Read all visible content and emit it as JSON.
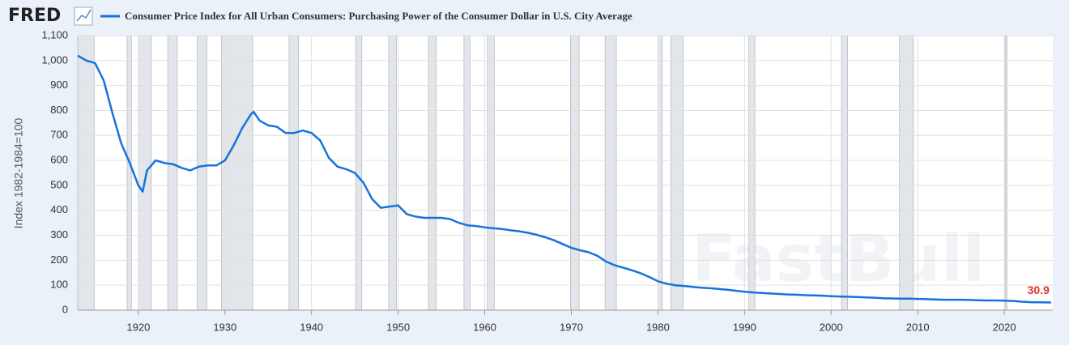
{
  "chart_data": {
    "type": "line",
    "source": "FRED",
    "y_label": "Index 1982-1984=100",
    "watermark": "FastBull",
    "grid": true,
    "recession_color": "#e2e5e9",
    "recessions": [
      [
        1913.0,
        1914.9
      ],
      [
        1918.7,
        1919.2
      ],
      [
        1920.0,
        1921.5
      ],
      [
        1923.4,
        1924.5
      ],
      [
        1926.8,
        1927.9
      ],
      [
        1929.6,
        1933.2
      ],
      [
        1937.4,
        1938.5
      ],
      [
        1945.1,
        1945.8
      ],
      [
        1948.9,
        1949.8
      ],
      [
        1953.5,
        1954.4
      ],
      [
        1957.6,
        1958.3
      ],
      [
        1960.3,
        1961.1
      ],
      [
        1969.9,
        1970.9
      ],
      [
        1973.9,
        1975.2
      ],
      [
        1980.0,
        1980.5
      ],
      [
        1981.5,
        1982.9
      ],
      [
        1990.5,
        1991.2
      ],
      [
        2001.2,
        2001.9
      ],
      [
        2007.9,
        2009.5
      ],
      [
        2020.1,
        2020.3
      ]
    ],
    "x": [
      1913,
      1914,
      1915,
      1916,
      1917,
      1918,
      1919,
      1920,
      1920.5,
      1921,
      1922,
      1923,
      1924,
      1925,
      1926,
      1927,
      1928,
      1929,
      1930,
      1931,
      1932,
      1933,
      1933.3,
      1934,
      1935,
      1936,
      1937,
      1938,
      1939,
      1940,
      1941,
      1942,
      1943,
      1944,
      1945,
      1946,
      1947,
      1948,
      1949,
      1950,
      1951,
      1952,
      1953,
      1954,
      1955,
      1956,
      1957,
      1958,
      1959,
      1960,
      1961,
      1962,
      1963,
      1964,
      1965,
      1966,
      1967,
      1968,
      1969,
      1970,
      1971,
      1972,
      1973,
      1974,
      1975,
      1976,
      1977,
      1978,
      1979,
      1980,
      1981,
      1982,
      1983,
      1984,
      1985,
      1986,
      1987,
      1988,
      1989,
      1990,
      1991,
      1992,
      1993,
      1994,
      1995,
      1996,
      1997,
      1998,
      1999,
      2000,
      2001,
      2002,
      2003,
      2004,
      2005,
      2006,
      2007,
      2008,
      2009,
      2010,
      2011,
      2012,
      2013,
      2014,
      2015,
      2016,
      2017,
      2018,
      2019,
      2020,
      2021,
      2022,
      2023,
      2024,
      2025.4
    ],
    "series": [
      {
        "name": "Consumer Price Index for All Urban Consumers: Purchasing Power of the Consumer Dollar in U.S. City Average",
        "color": "#1673dc",
        "values": [
          1020,
          1000,
          990,
          920,
          790,
          670,
          590,
          500,
          475,
          560,
          600,
          590,
          585,
          570,
          560,
          575,
          580,
          580,
          600,
          660,
          730,
          785,
          795,
          760,
          740,
          735,
          710,
          710,
          720,
          710,
          680,
          610,
          575,
          565,
          550,
          510,
          445,
          410,
          415,
          420,
          385,
          375,
          370,
          370,
          370,
          365,
          350,
          340,
          337,
          332,
          328,
          325,
          320,
          316,
          310,
          302,
          292,
          280,
          265,
          250,
          240,
          232,
          218,
          195,
          180,
          170,
          160,
          148,
          133,
          116,
          106,
          100,
          97,
          93,
          90,
          88,
          85,
          82,
          78,
          74,
          71,
          69,
          67,
          65,
          63,
          62,
          60,
          59,
          58,
          56,
          55,
          54,
          53,
          51,
          50,
          48,
          47,
          46,
          46,
          45,
          44,
          43,
          42,
          42,
          42,
          41,
          40,
          39,
          39,
          38,
          37,
          34,
          32,
          31.5,
          30.9
        ]
      }
    ],
    "last_label": "30.9",
    "xlim": [
      1913,
      2025.6
    ],
    "xticks": [
      1920,
      1930,
      1940,
      1950,
      1960,
      1970,
      1980,
      1990,
      2000,
      2010,
      2020
    ],
    "ylim": [
      0,
      1100
    ],
    "yticks": [
      0,
      100,
      200,
      300,
      400,
      500,
      600,
      700,
      800,
      900,
      {
        "value": 1000,
        "label": "1,000"
      },
      {
        "value": 1100,
        "label": "1,100"
      }
    ]
  }
}
